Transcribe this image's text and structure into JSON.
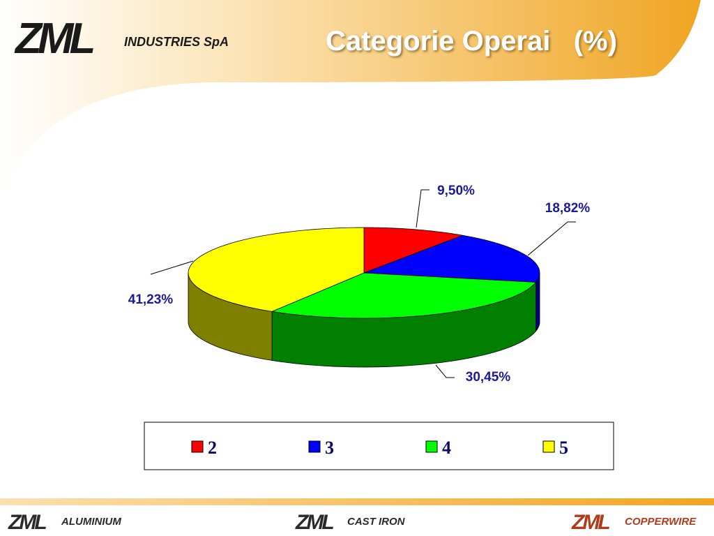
{
  "header": {
    "logo": "ZML",
    "company": "INDUSTRIES SpA"
  },
  "chart_data": {
    "type": "pie3d",
    "title": "Categorie Operai   (%)",
    "categories": [
      "2",
      "3",
      "4",
      "5"
    ],
    "values": [
      9.5,
      18.82,
      30.45,
      41.23
    ],
    "value_labels": [
      "9,50%",
      "18,82%",
      "30,45%",
      "41,23%"
    ],
    "colors": [
      "#ff0000",
      "#0000ff",
      "#00ff00",
      "#ffff00"
    ],
    "legend": "bottom"
  },
  "footer": [
    {
      "logo": "ZML",
      "name": "ALUMINIUM"
    },
    {
      "logo": "ZML",
      "name": "CAST IRON"
    },
    {
      "logo": "ZML",
      "name": "COPPERWIRE"
    }
  ]
}
